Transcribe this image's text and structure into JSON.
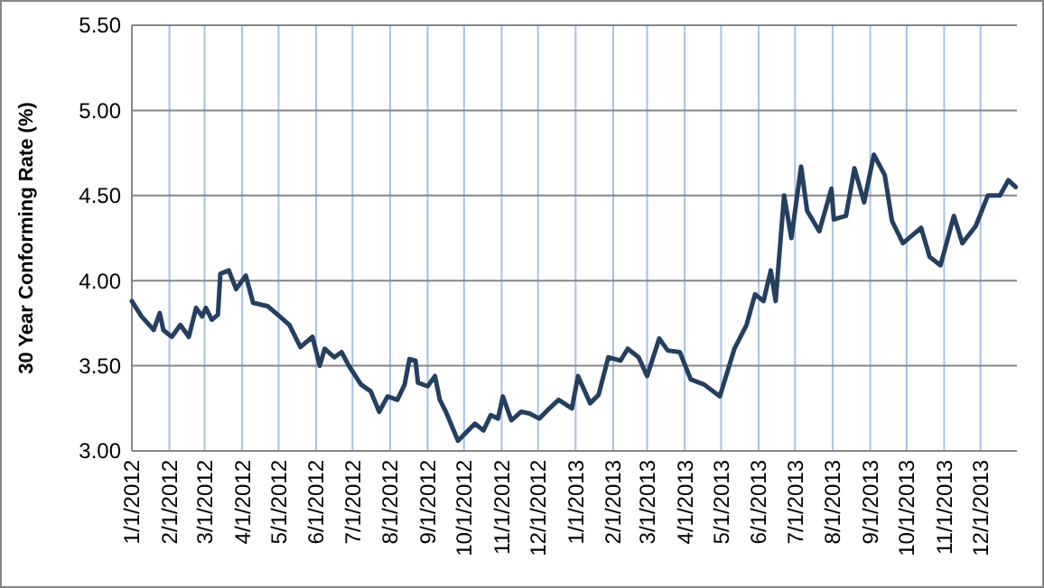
{
  "chart_data": {
    "type": "line",
    "ylabel": "30 Year Conforming Rate (%)",
    "grid": true,
    "line_style": "solid",
    "xlim": [
      "2012-01-01",
      "2013-12-31"
    ],
    "xticks": [
      {
        "value": "2012-01-01",
        "label": "1/1/2012"
      },
      {
        "value": "2012-02-01",
        "label": "2/1/2012"
      },
      {
        "value": "2012-03-01",
        "label": "3/1/2012"
      },
      {
        "value": "2012-04-01",
        "label": "4/1/2012"
      },
      {
        "value": "2012-05-01",
        "label": "5/1/2012"
      },
      {
        "value": "2012-06-01",
        "label": "6/1/2012"
      },
      {
        "value": "2012-07-01",
        "label": "7/1/2012"
      },
      {
        "value": "2012-08-01",
        "label": "8/1/2012"
      },
      {
        "value": "2012-09-01",
        "label": "9/1/2012"
      },
      {
        "value": "2012-10-01",
        "label": "10/1/2012"
      },
      {
        "value": "2012-11-01",
        "label": "11/1/2012"
      },
      {
        "value": "2012-12-01",
        "label": "12/1/2012"
      },
      {
        "value": "2013-01-01",
        "label": "1/1/2013"
      },
      {
        "value": "2013-02-01",
        "label": "2/1/2013"
      },
      {
        "value": "2013-03-01",
        "label": "3/1/2013"
      },
      {
        "value": "2013-04-01",
        "label": "4/1/2013"
      },
      {
        "value": "2013-05-01",
        "label": "5/1/2013"
      },
      {
        "value": "2013-06-01",
        "label": "6/1/2013"
      },
      {
        "value": "2013-07-01",
        "label": "7/1/2013"
      },
      {
        "value": "2013-08-01",
        "label": "8/1/2013"
      },
      {
        "value": "2013-09-01",
        "label": "9/1/2013"
      },
      {
        "value": "2013-10-01",
        "label": "10/1/2013"
      },
      {
        "value": "2013-11-01",
        "label": "11/1/2013"
      },
      {
        "value": "2013-12-01",
        "label": "12/1/2013"
      }
    ],
    "ylim": [
      3,
      5.5
    ],
    "yticks": [
      {
        "value": 3,
        "label": "3.00"
      },
      {
        "value": 3.5,
        "label": "3.50"
      },
      {
        "value": 4,
        "label": "4.00"
      },
      {
        "value": 4.5,
        "label": "4.50"
      },
      {
        "value": 5,
        "label": "5.00"
      },
      {
        "value": 5.5,
        "label": "5.50"
      }
    ],
    "x": [
      "2012-01-01",
      "2012-01-09",
      "2012-01-19",
      "2012-01-24",
      "2012-01-27",
      "2012-02-03",
      "2012-02-10",
      "2012-02-17",
      "2012-02-23",
      "2012-02-28",
      "2012-03-02",
      "2012-03-07",
      "2012-03-12",
      "2012-03-14",
      "2012-03-21",
      "2012-03-27",
      "2012-04-04",
      "2012-04-10",
      "2012-04-22",
      "2012-05-02",
      "2012-05-10",
      "2012-05-19",
      "2012-05-29",
      "2012-06-04",
      "2012-06-08",
      "2012-06-16",
      "2012-06-22",
      "2012-06-28",
      "2012-07-08",
      "2012-07-16",
      "2012-07-23",
      "2012-07-30",
      "2012-08-07",
      "2012-08-13",
      "2012-08-17",
      "2012-08-22",
      "2012-08-24",
      "2012-09-01",
      "2012-09-07",
      "2012-09-11",
      "2012-09-16",
      "2012-09-26",
      "2012-10-03",
      "2012-10-10",
      "2012-10-17",
      "2012-10-23",
      "2012-10-29",
      "2012-11-02",
      "2012-11-09",
      "2012-11-17",
      "2012-11-24",
      "2012-12-02",
      "2012-12-09",
      "2012-12-18",
      "2012-12-29",
      "2013-01-03",
      "2013-01-13",
      "2013-01-20",
      "2013-01-28",
      "2013-02-07",
      "2013-02-13",
      "2013-02-22",
      "2013-03-01",
      "2013-03-11",
      "2013-03-18",
      "2013-03-28",
      "2013-04-06",
      "2013-04-17",
      "2013-04-30",
      "2013-05-12",
      "2013-05-22",
      "2013-05-29",
      "2013-06-05",
      "2013-06-11",
      "2013-06-15",
      "2013-06-22",
      "2013-06-28",
      "2013-07-06",
      "2013-07-11",
      "2013-07-21",
      "2013-07-31",
      "2013-08-02",
      "2013-08-12",
      "2013-08-19",
      "2013-08-27",
      "2013-09-04",
      "2013-09-13",
      "2013-09-19",
      "2013-09-28",
      "2013-10-13",
      "2013-10-20",
      "2013-10-29",
      "2013-11-09",
      "2013-11-16",
      "2013-11-27",
      "2013-12-07",
      "2013-12-17",
      "2013-12-24",
      "2013-12-30"
    ],
    "series": [
      {
        "color": "#243f60",
        "values": [
          3.88,
          3.79,
          3.71,
          3.81,
          3.71,
          3.67,
          3.74,
          3.67,
          3.84,
          3.79,
          3.84,
          3.77,
          3.8,
          4.04,
          4.06,
          3.95,
          4.03,
          3.87,
          3.85,
          3.79,
          3.74,
          3.61,
          3.67,
          3.5,
          3.6,
          3.55,
          3.58,
          3.5,
          3.39,
          3.35,
          3.23,
          3.32,
          3.3,
          3.39,
          3.54,
          3.53,
          3.4,
          3.38,
          3.44,
          3.3,
          3.23,
          3.06,
          3.11,
          3.16,
          3.12,
          3.21,
          3.19,
          3.32,
          3.18,
          3.23,
          3.22,
          3.19,
          3.24,
          3.3,
          3.25,
          3.44,
          3.28,
          3.33,
          3.55,
          3.53,
          3.6,
          3.55,
          3.44,
          3.66,
          3.59,
          3.58,
          3.42,
          3.39,
          3.32,
          3.6,
          3.74,
          3.92,
          3.88,
          4.06,
          3.88,
          4.5,
          4.25,
          4.67,
          4.41,
          4.29,
          4.54,
          4.36,
          4.38,
          4.66,
          4.46,
          4.74,
          4.62,
          4.35,
          4.22,
          4.31,
          4.14,
          4.09,
          4.38,
          4.22,
          4.32,
          4.5,
          4.5,
          4.59,
          4.55
        ]
      }
    ]
  }
}
